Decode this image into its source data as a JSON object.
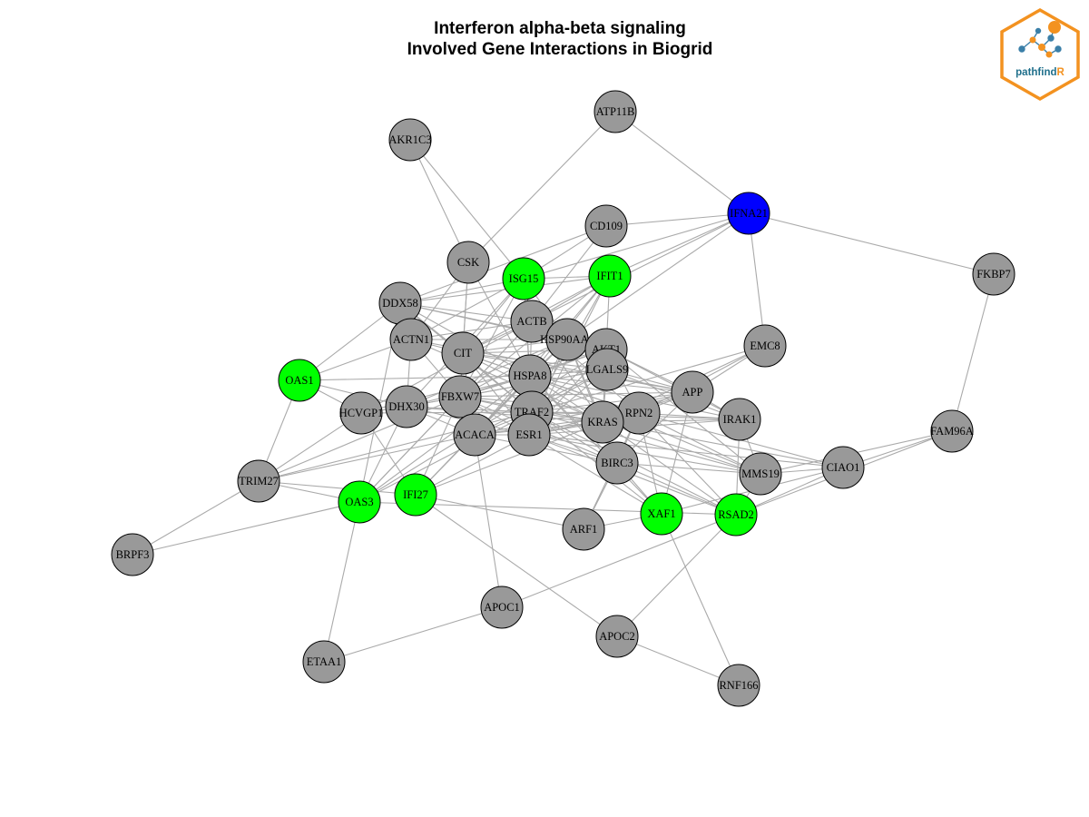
{
  "title": {
    "line1": "Interferon alpha-beta signaling",
    "line2": "Involved Gene Interactions in Biogrid"
  },
  "logo": {
    "text_main": "pathfind",
    "text_accent": "R",
    "text_color": "#1f6f8b",
    "accent_color": "#f39220",
    "icon": "network-hexagon-logo"
  },
  "colors": {
    "gray": "#999999",
    "green": "#00ff00",
    "blue": "#0000ff",
    "edge": "#aaaaaa",
    "border": "#000000"
  },
  "nodes": [
    {
      "id": "ATP11B",
      "color": "gray"
    },
    {
      "id": "AKR1C3",
      "color": "gray"
    },
    {
      "id": "IFNA21",
      "color": "blue"
    },
    {
      "id": "CD109",
      "color": "gray"
    },
    {
      "id": "CSK",
      "color": "gray"
    },
    {
      "id": "ISG15",
      "color": "green"
    },
    {
      "id": "IFIT1",
      "color": "green"
    },
    {
      "id": "FKBP7",
      "color": "gray"
    },
    {
      "id": "DDX58",
      "color": "gray"
    },
    {
      "id": "ACTB",
      "color": "gray"
    },
    {
      "id": "ACTN1",
      "color": "gray"
    },
    {
      "id": "CIT",
      "color": "gray"
    },
    {
      "id": "HSP90AA1",
      "color": "gray"
    },
    {
      "id": "AKT1",
      "color": "gray"
    },
    {
      "id": "EMC8",
      "color": "gray"
    },
    {
      "id": "OAS1",
      "color": "green"
    },
    {
      "id": "HSPA8",
      "color": "gray"
    },
    {
      "id": "LGALS9",
      "color": "gray"
    },
    {
      "id": "APP",
      "color": "gray"
    },
    {
      "id": "HCVGP1",
      "color": "gray"
    },
    {
      "id": "DHX30",
      "color": "gray"
    },
    {
      "id": "FBXW7",
      "color": "gray"
    },
    {
      "id": "TRAF2",
      "color": "gray"
    },
    {
      "id": "RPN2",
      "color": "gray"
    },
    {
      "id": "IRAK1",
      "color": "gray"
    },
    {
      "id": "KRAS",
      "color": "gray"
    },
    {
      "id": "FAM96A",
      "color": "gray"
    },
    {
      "id": "ACACA",
      "color": "gray"
    },
    {
      "id": "ESR1",
      "color": "gray"
    },
    {
      "id": "BIRC3",
      "color": "gray"
    },
    {
      "id": "CIAO1",
      "color": "gray"
    },
    {
      "id": "MMS19",
      "color": "gray"
    },
    {
      "id": "TRIM27",
      "color": "gray"
    },
    {
      "id": "OAS3",
      "color": "green"
    },
    {
      "id": "IFI27",
      "color": "green"
    },
    {
      "id": "XAF1",
      "color": "green"
    },
    {
      "id": "RSAD2",
      "color": "green"
    },
    {
      "id": "ARF1",
      "color": "gray"
    },
    {
      "id": "BRPF3",
      "color": "gray"
    },
    {
      "id": "APOC1",
      "color": "gray"
    },
    {
      "id": "APOC2",
      "color": "gray"
    },
    {
      "id": "ETAA1",
      "color": "gray"
    },
    {
      "id": "RNF166",
      "color": "gray"
    }
  ],
  "edges": [
    [
      "ATP11B",
      "IFNA21"
    ],
    [
      "ATP11B",
      "CSK"
    ],
    [
      "AKR1C3",
      "ISG15"
    ],
    [
      "AKR1C3",
      "CSK"
    ],
    [
      "IFNA21",
      "CD109"
    ],
    [
      "IFNA21",
      "FKBP7"
    ],
    [
      "IFNA21",
      "EMC8"
    ],
    [
      "IFNA21",
      "ISG15"
    ],
    [
      "IFNA21",
      "IFIT1"
    ],
    [
      "IFNA21",
      "ACTB"
    ],
    [
      "IFNA21",
      "HSP90AA1"
    ],
    [
      "FKBP7",
      "FAM96A"
    ],
    [
      "CD109",
      "ISG15"
    ],
    [
      "CD109",
      "DDX58"
    ],
    [
      "CD109",
      "ACTB"
    ],
    [
      "CSK",
      "CIT"
    ],
    [
      "CSK",
      "HSPA8"
    ],
    [
      "CSK",
      "ACTN1"
    ],
    [
      "CSK",
      "FBXW7"
    ],
    [
      "ISG15",
      "DDX58"
    ],
    [
      "ISG15",
      "IFIT1"
    ],
    [
      "ISG15",
      "ACTB"
    ],
    [
      "ISG15",
      "HSPA8"
    ],
    [
      "ISG15",
      "TRAF2"
    ],
    [
      "ISG15",
      "CIT"
    ],
    [
      "ISG15",
      "FBXW7"
    ],
    [
      "ISG15",
      "DHX30"
    ],
    [
      "ISG15",
      "ACTN1"
    ],
    [
      "ISG15",
      "HSP90AA1"
    ],
    [
      "IFIT1",
      "AKT1"
    ],
    [
      "IFIT1",
      "DDX58"
    ],
    [
      "IFIT1",
      "CIT"
    ],
    [
      "IFIT1",
      "HSPA8"
    ],
    [
      "IFIT1",
      "FBXW7"
    ],
    [
      "IFIT1",
      "ACTB"
    ],
    [
      "IFIT1",
      "ACACA"
    ],
    [
      "IFIT1",
      "ESR1"
    ],
    [
      "IFIT1",
      "TRAF2"
    ],
    [
      "DDX58",
      "OAS1"
    ],
    [
      "DDX58",
      "ACTB"
    ],
    [
      "DDX58",
      "HSPA8"
    ],
    [
      "DDX58",
      "TRAF2"
    ],
    [
      "DDX58",
      "CIT"
    ],
    [
      "DDX58",
      "HSP90AA1"
    ],
    [
      "DDX58",
      "AKT1"
    ],
    [
      "DDX58",
      "OAS3"
    ],
    [
      "ACTB",
      "CIT"
    ],
    [
      "ACTB",
      "HSPA8"
    ],
    [
      "ACTB",
      "FBXW7"
    ],
    [
      "ACTB",
      "ACTN1"
    ],
    [
      "ACTB",
      "HCVGP1"
    ],
    [
      "ACTB",
      "OAS3"
    ],
    [
      "ACTB",
      "AKT1"
    ],
    [
      "ACTB",
      "RPN2"
    ],
    [
      "ACTB",
      "KRAS"
    ],
    [
      "ACTN1",
      "CIT"
    ],
    [
      "ACTN1",
      "HSP90AA1"
    ],
    [
      "ACTN1",
      "FBXW7"
    ],
    [
      "ACTN1",
      "DHX30"
    ],
    [
      "ACTN1",
      "OAS1"
    ],
    [
      "ACTN1",
      "APP"
    ],
    [
      "ACTN1",
      "KRAS"
    ],
    [
      "CIT",
      "HSPA8"
    ],
    [
      "CIT",
      "FBXW7"
    ],
    [
      "CIT",
      "LGALS9"
    ],
    [
      "CIT",
      "AKT1"
    ],
    [
      "CIT",
      "KRAS"
    ],
    [
      "CIT",
      "RPN2"
    ],
    [
      "CIT",
      "TRAF2"
    ],
    [
      "CIT",
      "ESR1"
    ],
    [
      "CIT",
      "ACACA"
    ],
    [
      "CIT",
      "HSP90AA1"
    ],
    [
      "CIT",
      "APP"
    ],
    [
      "HSP90AA1",
      "AKT1"
    ],
    [
      "HSP90AA1",
      "HSPA8"
    ],
    [
      "HSP90AA1",
      "TRAF2"
    ],
    [
      "HSP90AA1",
      "FBXW7"
    ],
    [
      "HSP90AA1",
      "ESR1"
    ],
    [
      "HSP90AA1",
      "ACACA"
    ],
    [
      "HSP90AA1",
      "DHX30"
    ],
    [
      "HSP90AA1",
      "BIRC3"
    ],
    [
      "HSP90AA1",
      "KRAS"
    ],
    [
      "HSP90AA1",
      "IFI27"
    ],
    [
      "AKT1",
      "HSPA8"
    ],
    [
      "AKT1",
      "FBXW7"
    ],
    [
      "AKT1",
      "TRAF2"
    ],
    [
      "AKT1",
      "ESR1"
    ],
    [
      "AKT1",
      "APP"
    ],
    [
      "AKT1",
      "RPN2"
    ],
    [
      "AKT1",
      "KRAS"
    ],
    [
      "AKT1",
      "IRAK1"
    ],
    [
      "AKT1",
      "MMS19"
    ],
    [
      "AKT1",
      "OAS3"
    ],
    [
      "AKT1",
      "HCVGP1"
    ],
    [
      "EMC8",
      "APP"
    ],
    [
      "EMC8",
      "KRAS"
    ],
    [
      "EMC8",
      "RPN2"
    ],
    [
      "EMC8",
      "TRAF2"
    ],
    [
      "OAS1",
      "TRIM27"
    ],
    [
      "OAS1",
      "HCVGP1"
    ],
    [
      "OAS1",
      "DHX30"
    ],
    [
      "OAS1",
      "HSPA8"
    ],
    [
      "HSPA8",
      "LGALS9"
    ],
    [
      "HSPA8",
      "FBXW7"
    ],
    [
      "HSPA8",
      "TRAF2"
    ],
    [
      "HSPA8",
      "APP"
    ],
    [
      "HSPA8",
      "RPN2"
    ],
    [
      "HSPA8",
      "KRAS"
    ],
    [
      "HSPA8",
      "ESR1"
    ],
    [
      "HSPA8",
      "ACACA"
    ],
    [
      "HSPA8",
      "DHX30"
    ],
    [
      "HSPA8",
      "IRAK1"
    ],
    [
      "HSPA8",
      "XAF1"
    ],
    [
      "HSPA8",
      "OAS3"
    ],
    [
      "HSPA8",
      "IFI27"
    ],
    [
      "HSPA8",
      "BIRC3"
    ],
    [
      "HSPA8",
      "MMS19"
    ],
    [
      "LGALS9",
      "FBXW7"
    ],
    [
      "LGALS9",
      "APP"
    ],
    [
      "LGALS9",
      "DHX30"
    ],
    [
      "LGALS9",
      "IRAK1"
    ],
    [
      "LGALS9",
      "TRAF2"
    ],
    [
      "LGALS9",
      "ESR1"
    ],
    [
      "LGALS9",
      "ACACA"
    ],
    [
      "LGALS9",
      "KRAS"
    ],
    [
      "APP",
      "RPN2"
    ],
    [
      "APP",
      "KRAS"
    ],
    [
      "APP",
      "ESR1"
    ],
    [
      "APP",
      "TRAF2"
    ],
    [
      "APP",
      "BIRC3"
    ],
    [
      "APP",
      "ACACA"
    ],
    [
      "APP",
      "XAF1"
    ],
    [
      "APP",
      "IRAK1"
    ],
    [
      "APP",
      "FBXW7"
    ],
    [
      "HCVGP1",
      "TRIM27"
    ],
    [
      "HCVGP1",
      "IFI27"
    ],
    [
      "HCVGP1",
      "DHX30"
    ],
    [
      "HCVGP1",
      "TRAF2"
    ],
    [
      "DHX30",
      "FBXW7"
    ],
    [
      "DHX30",
      "TRAF2"
    ],
    [
      "DHX30",
      "OAS3"
    ],
    [
      "DHX30",
      "KRAS"
    ],
    [
      "DHX30",
      "ESR1"
    ],
    [
      "DHX30",
      "ACACA"
    ],
    [
      "FBXW7",
      "TRAF2"
    ],
    [
      "FBXW7",
      "ESR1"
    ],
    [
      "FBXW7",
      "KRAS"
    ],
    [
      "FBXW7",
      "RPN2"
    ],
    [
      "FBXW7",
      "ACACA"
    ],
    [
      "FBXW7",
      "OAS3"
    ],
    [
      "FBXW7",
      "TRIM27"
    ],
    [
      "FBXW7",
      "IFI27"
    ],
    [
      "FBXW7",
      "BIRC3"
    ],
    [
      "TRAF2",
      "ESR1"
    ],
    [
      "TRAF2",
      "KRAS"
    ],
    [
      "TRAF2",
      "RPN2"
    ],
    [
      "TRAF2",
      "ACACA"
    ],
    [
      "TRAF2",
      "BIRC3"
    ],
    [
      "TRAF2",
      "IRAK1"
    ],
    [
      "TRAF2",
      "MMS19"
    ],
    [
      "TRAF2",
      "XAF1"
    ],
    [
      "TRAF2",
      "OAS3"
    ],
    [
      "TRAF2",
      "TRIM27"
    ],
    [
      "TRAF2",
      "RSAD2"
    ],
    [
      "RPN2",
      "KRAS"
    ],
    [
      "RPN2",
      "ESR1"
    ],
    [
      "RPN2",
      "ACACA"
    ],
    [
      "RPN2",
      "IRAK1"
    ],
    [
      "RPN2",
      "XAF1"
    ],
    [
      "RPN2",
      "BIRC3"
    ],
    [
      "RPN2",
      "MMS19"
    ],
    [
      "RPN2",
      "RSAD2"
    ],
    [
      "RPN2",
      "ARF1"
    ],
    [
      "RPN2",
      "CIAO1"
    ],
    [
      "IRAK1",
      "MMS19"
    ],
    [
      "IRAK1",
      "ESR1"
    ],
    [
      "IRAK1",
      "KRAS"
    ],
    [
      "IRAK1",
      "RSAD2"
    ],
    [
      "KRAS",
      "ESR1"
    ],
    [
      "KRAS",
      "ACACA"
    ],
    [
      "KRAS",
      "BIRC3"
    ],
    [
      "KRAS",
      "MMS19"
    ],
    [
      "KRAS",
      "CIAO1"
    ],
    [
      "KRAS",
      "RSAD2"
    ],
    [
      "KRAS",
      "IFI27"
    ],
    [
      "FAM96A",
      "CIAO1"
    ],
    [
      "FAM96A",
      "MMS19"
    ],
    [
      "FAM96A",
      "RSAD2"
    ],
    [
      "ACACA",
      "ESR1"
    ],
    [
      "ACACA",
      "APOC1"
    ],
    [
      "ACACA",
      "BIRC3"
    ],
    [
      "ACACA",
      "TRIM27"
    ],
    [
      "ESR1",
      "BIRC3"
    ],
    [
      "ESR1",
      "MMS19"
    ],
    [
      "ESR1",
      "CIAO1"
    ],
    [
      "ESR1",
      "RSAD2"
    ],
    [
      "ESR1",
      "XAF1"
    ],
    [
      "ESR1",
      "IFI27"
    ],
    [
      "BIRC3",
      "ARF1"
    ],
    [
      "BIRC3",
      "XAF1"
    ],
    [
      "BIRC3",
      "MMS19"
    ],
    [
      "BIRC3",
      "RSAD2"
    ],
    [
      "CIAO1",
      "MMS19"
    ],
    [
      "CIAO1",
      "XAF1"
    ],
    [
      "CIAO1",
      "RSAD2"
    ],
    [
      "MMS19",
      "RSAD2"
    ],
    [
      "TRIM27",
      "OAS3"
    ],
    [
      "TRIM27",
      "BRPF3"
    ],
    [
      "TRIM27",
      "IFI27"
    ],
    [
      "OAS3",
      "BRPF3"
    ],
    [
      "OAS3",
      "ETAA1"
    ],
    [
      "OAS3",
      "RSAD2"
    ],
    [
      "IFI27",
      "ARF1"
    ],
    [
      "IFI27",
      "APOC2"
    ],
    [
      "XAF1",
      "ARF1"
    ],
    [
      "XAF1",
      "RNF166"
    ],
    [
      "RSAD2",
      "APOC1"
    ],
    [
      "RSAD2",
      "APOC2"
    ],
    [
      "APOC1",
      "ETAA1"
    ],
    [
      "APOC2",
      "RNF166"
    ]
  ]
}
